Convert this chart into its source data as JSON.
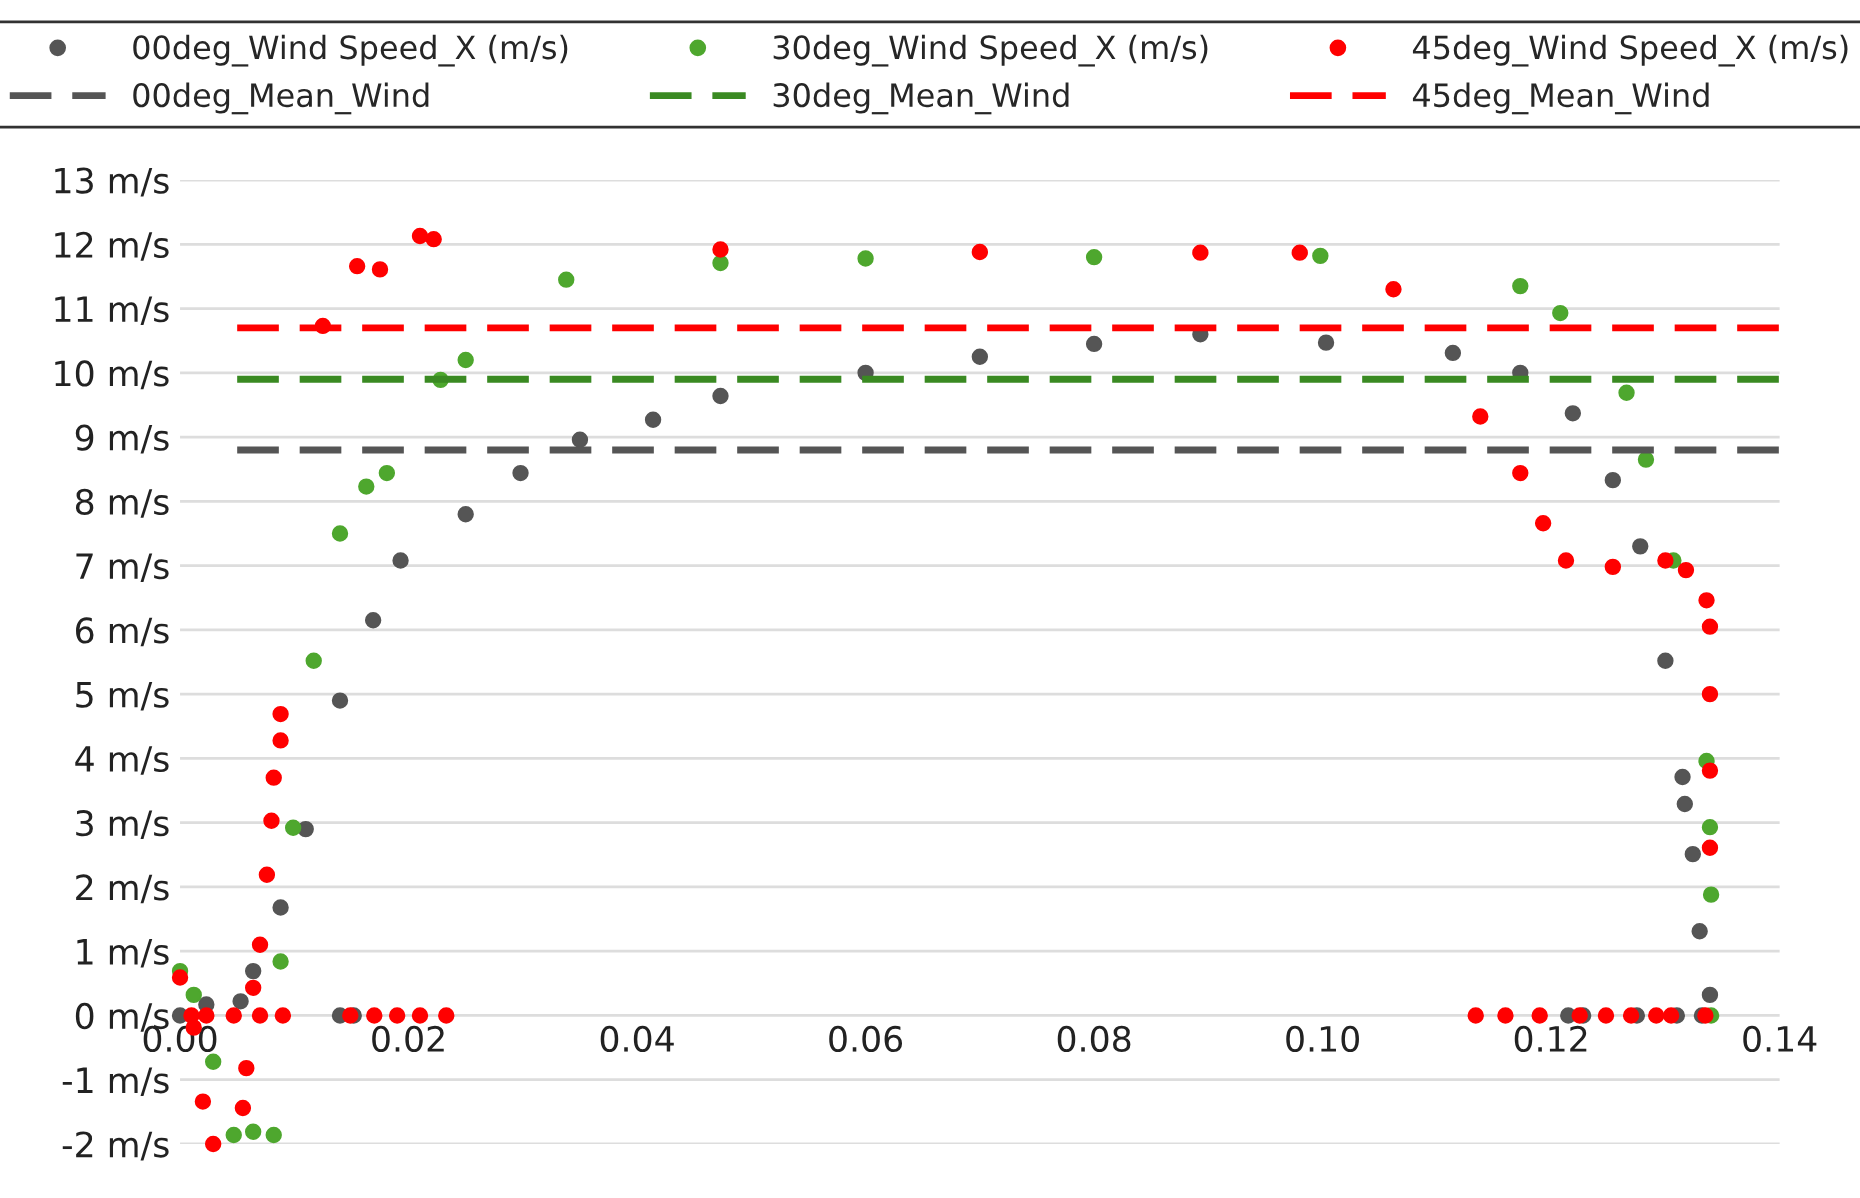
{
  "chart_data": {
    "type": "scatter",
    "xlim": [
      0,
      0.14
    ],
    "xticks": [
      {
        "value": 0,
        "label": "0.00"
      },
      {
        "value": 0.02,
        "label": "0.02"
      },
      {
        "value": 0.04,
        "label": "0.04"
      },
      {
        "value": 0.06,
        "label": "0.06"
      },
      {
        "value": 0.08,
        "label": "0.08"
      },
      {
        "value": 0.1,
        "label": "0.10"
      },
      {
        "value": 0.12,
        "label": "0.12"
      },
      {
        "value": 0.14,
        "label": "0.14"
      }
    ],
    "ylim": [
      -2,
      13
    ],
    "yticks": [
      {
        "value": -2,
        "label": "-2 m/s"
      },
      {
        "value": -1,
        "label": "-1 m/s"
      },
      {
        "value": 0,
        "label": "0 m/s"
      },
      {
        "value": 1,
        "label": "1 m/s"
      },
      {
        "value": 2,
        "label": "2 m/s"
      },
      {
        "value": 3,
        "label": "3 m/s"
      },
      {
        "value": 4,
        "label": "4 m/s"
      },
      {
        "value": 5,
        "label": "5 m/s"
      },
      {
        "value": 6,
        "label": "6 m/s"
      },
      {
        "value": 7,
        "label": "7 m/s"
      },
      {
        "value": 8,
        "label": "8 m/s"
      },
      {
        "value": 9,
        "label": "9 m/s"
      },
      {
        "value": 10,
        "label": "10 m/s"
      },
      {
        "value": 11,
        "label": "11 m/s"
      },
      {
        "value": 12,
        "label": "12 m/s"
      },
      {
        "value": 13,
        "label": "13 m/s"
      }
    ],
    "grid": "y",
    "legend": "top",
    "marker": "circle",
    "series": [
      {
        "name": "00deg_Wind Speed_X (m/s)",
        "color": "#555555",
        "x": [
          0,
          0.0023,
          0.0053,
          0.0064,
          0.0088,
          0.011,
          0.014,
          0.0169,
          0.0193,
          0.025,
          0.0298,
          0.035,
          0.0414,
          0.0473,
          0.06,
          0.07,
          0.08,
          0.0893,
          0.1003,
          0.1114,
          0.1173,
          0.1219,
          0.1254,
          0.1278,
          0.13,
          0.1315,
          0.1317,
          0.1324,
          0.133,
          0.1339,
          0.014,
          0.0152,
          0.1215,
          0.1228,
          0.1275,
          0.131,
          0.1332
        ],
        "values": [
          0,
          0.17,
          0.22,
          0.69,
          1.68,
          2.9,
          4.9,
          6.15,
          7.08,
          7.8,
          8.44,
          8.96,
          9.27,
          9.64,
          10.0,
          10.25,
          10.45,
          10.6,
          10.47,
          10.31,
          10.0,
          9.37,
          8.33,
          7.3,
          5.52,
          3.71,
          3.29,
          2.51,
          1.31,
          0.32,
          0,
          0,
          0,
          0,
          0,
          0,
          0
        ]
      },
      {
        "name": "30deg_Wind Speed_X (m/s)",
        "color": "#4ea72e",
        "x": [
          0,
          0.0012,
          0.0029,
          0.0047,
          0.0064,
          0.0082,
          0.0088,
          0.0099,
          0.0117,
          0.014,
          0.0163,
          0.0181,
          0.0228,
          0.025,
          0.0338,
          0.0473,
          0.06,
          0.08,
          0.0998,
          0.1173,
          0.1208,
          0.1266,
          0.1283,
          0.1307,
          0.1336,
          0.1339,
          0.134,
          0.134
        ],
        "values": [
          0.69,
          0.32,
          -0.72,
          -1.86,
          -1.81,
          -1.86,
          0.84,
          2.92,
          5.52,
          7.5,
          8.23,
          8.44,
          9.89,
          10.2,
          11.45,
          11.71,
          11.78,
          11.8,
          11.82,
          11.35,
          10.93,
          9.69,
          8.65,
          7.08,
          3.96,
          2.93,
          1.88,
          0
        ]
      },
      {
        "name": "45deg_Wind Speed_X (m/s)",
        "color": "#ff0000",
        "x": [
          0,
          0.0012,
          0.002,
          0.0029,
          0.0055,
          0.0058,
          0.0064,
          0.007,
          0.0076,
          0.008,
          0.0082,
          0.0088,
          0.0088,
          0.0125,
          0.0155,
          0.0175,
          0.021,
          0.0222,
          0.0473,
          0.07,
          0.0893,
          0.098,
          0.1062,
          0.1138,
          0.1173,
          0.1193,
          0.1213,
          0.1254,
          0.13,
          0.1318,
          0.1336,
          0.1339,
          0.1339,
          0.1339,
          0.1339,
          0.001,
          0.0023,
          0.0047,
          0.007,
          0.009,
          0.0149,
          0.017,
          0.019,
          0.021,
          0.0233,
          0.1134,
          0.116,
          0.119,
          0.1225,
          0.1248,
          0.127,
          0.1292,
          0.1305,
          0.1335
        ],
        "values": [
          0.59,
          -0.19,
          -1.34,
          -2.0,
          -1.44,
          -0.82,
          0.43,
          1.1,
          2.19,
          3.03,
          3.7,
          4.28,
          4.69,
          10.73,
          11.66,
          11.61,
          12.13,
          12.08,
          11.92,
          11.88,
          11.87,
          11.87,
          11.3,
          9.32,
          8.44,
          7.66,
          7.08,
          6.98,
          7.08,
          6.93,
          6.46,
          6.05,
          5.0,
          3.81,
          2.61,
          0,
          0,
          0,
          0,
          0,
          0,
          0,
          0,
          0,
          0,
          0,
          0,
          0,
          0,
          0,
          0,
          0,
          0,
          0
        ]
      },
      {
        "name": "00deg_Mean_Wind",
        "type": "line",
        "marker": "none",
        "line_style": "dashed",
        "color": "#555555",
        "x": [
          0.005,
          0.14
        ],
        "values": [
          8.8,
          8.8
        ]
      },
      {
        "name": "30deg_Mean_Wind",
        "type": "line",
        "marker": "none",
        "line_style": "dashed",
        "color": "#3a8a22",
        "x": [
          0.005,
          0.14
        ],
        "values": [
          9.9,
          9.9
        ]
      },
      {
        "name": "45deg_Mean_Wind",
        "type": "line",
        "marker": "none",
        "line_style": "dashed",
        "color": "#ff0000",
        "x": [
          0.005,
          0.14
        ],
        "values": [
          10.7,
          10.7
        ]
      }
    ]
  }
}
